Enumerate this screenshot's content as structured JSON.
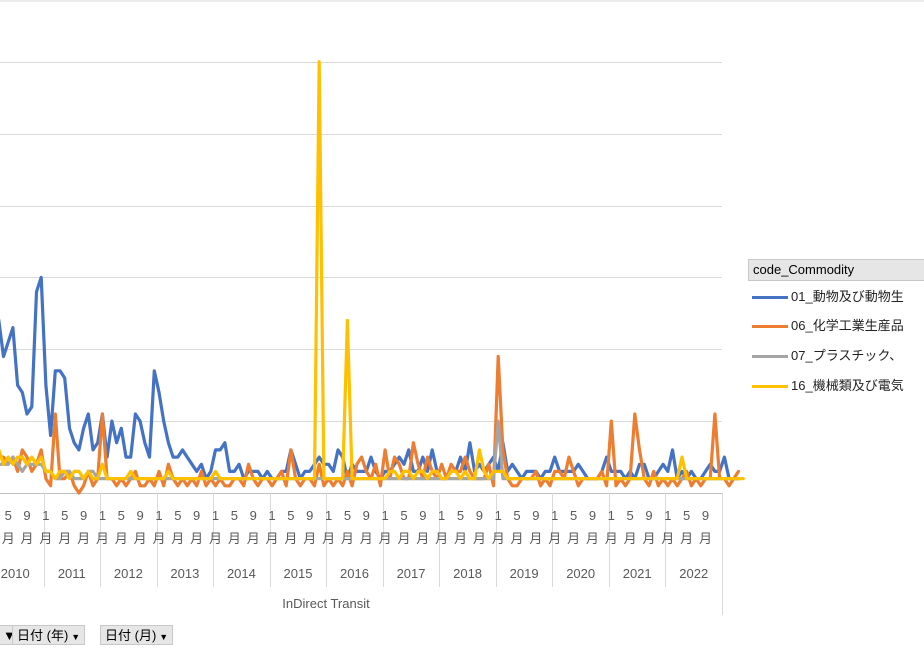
{
  "chart_data": {
    "type": "line",
    "xlabel": "InDirect Transit",
    "month_labels": [
      "1",
      "5",
      "9"
    ],
    "month_unit": "月",
    "years": [
      "2010",
      "2011",
      "2012",
      "2013",
      "2014",
      "2015",
      "2016",
      "2017",
      "2018",
      "2019",
      "2020",
      "2021",
      "2022"
    ],
    "series": [
      {
        "name": "01_動物及び動物生",
        "color": "#4472C4",
        "values": [
          12,
          27,
          24,
          19,
          21,
          23,
          15,
          14,
          11,
          12,
          28,
          30,
          15,
          8,
          17,
          17,
          16,
          9,
          7,
          6,
          9,
          11,
          6,
          7,
          11,
          5,
          10,
          7,
          9,
          5,
          5,
          11,
          10,
          7,
          5,
          17,
          14,
          10,
          7,
          5,
          5,
          6,
          5,
          4,
          3,
          4,
          2,
          3,
          6,
          6,
          7,
          3,
          3,
          4,
          2,
          3,
          3,
          3,
          2,
          3,
          2,
          2,
          3,
          3,
          6,
          4,
          2,
          3,
          3,
          4,
          5,
          4,
          4,
          3,
          6,
          5,
          2,
          4,
          3,
          3,
          3,
          5,
          3,
          2,
          3,
          3,
          4,
          5,
          4,
          6,
          3,
          3,
          5,
          3,
          6,
          3,
          2,
          2,
          3,
          3,
          5,
          3,
          7,
          3,
          4,
          3,
          4,
          5,
          3,
          7,
          3,
          4,
          3,
          2,
          3,
          3,
          3,
          2,
          3,
          3,
          5,
          3,
          3,
          3,
          3,
          4,
          3,
          2,
          2,
          2,
          3,
          5,
          3,
          3,
          3,
          2,
          3,
          2,
          4,
          4,
          2,
          2,
          3,
          4,
          3,
          6,
          2,
          3,
          2,
          3,
          2,
          2,
          3,
          4,
          3,
          3,
          5,
          2,
          2,
          2
        ]
      },
      {
        "name": "06_化学工業生産品",
        "color": "#ED7D31",
        "values": [
          6,
          7,
          5,
          5,
          4,
          5,
          3,
          6,
          5,
          3,
          4,
          6,
          2,
          1,
          11,
          2,
          2,
          3,
          1,
          0,
          1,
          3,
          1,
          2,
          11,
          2,
          2,
          1,
          2,
          1,
          2,
          3,
          1,
          1,
          2,
          1,
          3,
          1,
          4,
          2,
          1,
          2,
          1,
          2,
          1,
          3,
          1,
          2,
          1,
          2,
          1,
          1,
          2,
          2,
          1,
          4,
          2,
          1,
          2,
          2,
          1,
          2,
          3,
          1,
          6,
          2,
          1,
          2,
          2,
          1,
          4,
          1,
          2,
          1,
          2,
          1,
          3,
          1,
          4,
          5,
          3,
          2,
          4,
          1,
          6,
          2,
          5,
          4,
          2,
          2,
          7,
          4,
          2,
          5,
          3,
          2,
          4,
          2,
          4,
          3,
          3,
          5,
          3,
          2,
          2,
          2,
          4,
          1,
          19,
          6,
          2,
          1,
          1,
          2,
          2,
          2,
          3,
          1,
          2,
          1,
          3,
          3,
          2,
          5,
          3,
          1,
          2,
          2,
          2,
          2,
          3,
          1,
          10,
          1,
          2,
          1,
          2,
          11,
          6,
          2,
          1,
          3,
          1,
          2,
          1,
          2,
          1,
          2,
          3,
          1,
          2,
          1,
          2,
          2,
          11,
          2,
          2,
          1,
          2,
          3
        ]
      },
      {
        "name": "07_プラスチック、",
        "color": "#A5A5A5",
        "values": [
          5,
          5,
          4,
          4,
          4,
          5,
          4,
          3,
          4,
          4,
          4,
          4,
          3,
          3,
          2,
          2,
          3,
          3,
          2,
          2,
          2,
          3,
          3,
          2,
          2,
          2,
          2,
          2,
          2,
          2,
          2,
          2,
          2,
          2,
          2,
          2,
          2,
          2,
          2,
          2,
          2,
          2,
          2,
          2,
          2,
          2,
          2,
          2,
          2,
          2,
          2,
          2,
          2,
          2,
          2,
          2,
          2,
          2,
          2,
          2,
          2,
          2,
          2,
          2,
          2,
          2,
          2,
          2,
          2,
          2,
          2,
          2,
          2,
          2,
          2,
          2,
          2,
          2,
          2,
          2,
          2,
          2,
          2,
          2,
          2,
          2,
          2,
          2,
          2,
          2,
          2,
          2,
          2,
          2,
          2,
          2,
          2,
          2,
          2,
          2,
          2,
          2,
          2,
          2,
          2,
          2,
          2,
          2,
          10,
          2,
          2,
          2,
          2,
          2,
          2,
          2,
          2,
          2,
          2,
          2,
          2,
          2,
          2,
          2,
          2,
          2,
          2,
          2,
          2,
          2,
          2,
          2,
          2,
          2,
          2,
          2,
          2,
          2,
          2,
          2,
          2,
          2,
          2,
          2,
          2,
          2,
          2,
          2,
          2,
          2,
          2,
          2,
          2,
          2,
          2,
          2,
          2,
          2,
          2,
          2
        ]
      },
      {
        "name": "16_機械類及び電気",
        "color": "#FFC000",
        "values": [
          6,
          5,
          6,
          4,
          5,
          4,
          5,
          5,
          4,
          5,
          4,
          5,
          3,
          3,
          2,
          3,
          3,
          2,
          3,
          3,
          2,
          3,
          2,
          2,
          4,
          2,
          2,
          2,
          2,
          2,
          3,
          2,
          2,
          2,
          2,
          2,
          2,
          2,
          3,
          2,
          2,
          2,
          2,
          2,
          2,
          2,
          2,
          2,
          3,
          2,
          2,
          2,
          2,
          2,
          2,
          2,
          2,
          2,
          2,
          2,
          2,
          2,
          2,
          2,
          2,
          2,
          2,
          2,
          2,
          2,
          60,
          2,
          2,
          2,
          2,
          2,
          24,
          2,
          2,
          2,
          2,
          2,
          2,
          2,
          2,
          3,
          3,
          2,
          3,
          3,
          2,
          3,
          3,
          2,
          3,
          3,
          2,
          2,
          3,
          3,
          2,
          3,
          2,
          2,
          6,
          3,
          2,
          3,
          3,
          3,
          2,
          2,
          2,
          2,
          2,
          2,
          2,
          2,
          2,
          2,
          2,
          2,
          2,
          2,
          2,
          2,
          2,
          2,
          2,
          2,
          2,
          2,
          2,
          2,
          2,
          2,
          2,
          2,
          2,
          2,
          2,
          2,
          2,
          2,
          2,
          2,
          2,
          5,
          2,
          2,
          2,
          2,
          2,
          2,
          2,
          2,
          2,
          2,
          2,
          2,
          2
        ]
      }
    ],
    "ylim": [
      0,
      70
    ],
    "grid": true,
    "legend_position": "right",
    "legend_title": "code_Commodity"
  },
  "field_buttons": {
    "left_fragment": "▼",
    "year": "日付 (年)",
    "month": "日付 (月)",
    "arrow": "▼"
  }
}
